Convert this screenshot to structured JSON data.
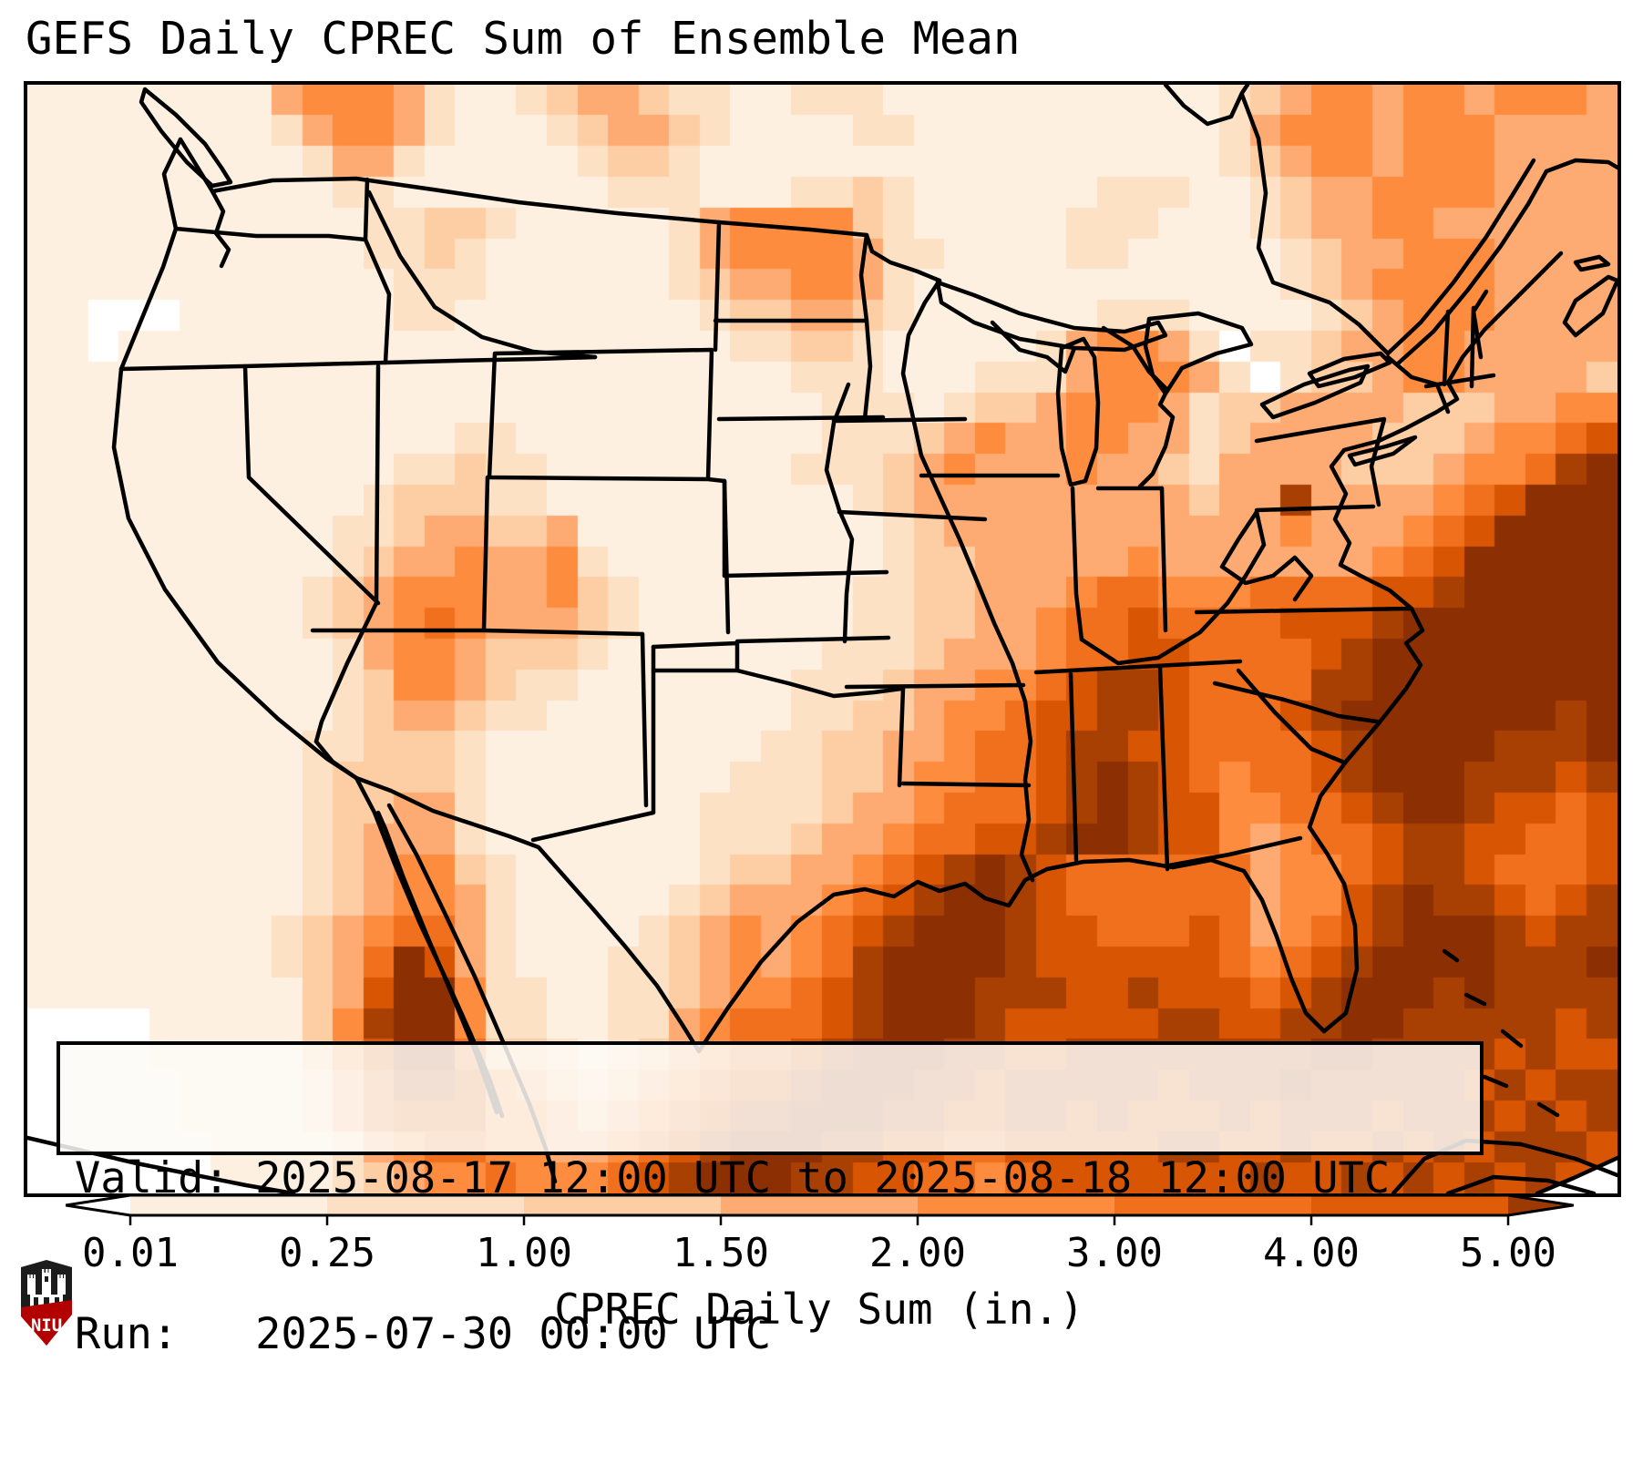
{
  "title": "GEFS Daily CPREC Sum of Ensemble Mean",
  "info_box": {
    "line1": "Valid: 2025-08-17 12:00 UTC to 2025-08-18 12:00 UTC",
    "line2": "Run:   2025-07-30 00:00 UTC"
  },
  "colorbar": {
    "label": "CPREC Daily Sum (in.)",
    "ticks": [
      "0.01",
      "0.25",
      "1.00",
      "1.50",
      "2.00",
      "3.00",
      "4.00",
      "5.00"
    ],
    "segment_colors": [
      "#fdefe0",
      "#fde0c3",
      "#fdcda4",
      "#fdab72",
      "#fd8c3e",
      "#f2701b",
      "#e05c09"
    ],
    "under_arrow_color": "#ffffff",
    "over_arrow_color": "#9d3a04"
  },
  "logo": {
    "text": "NIU",
    "shield_dark": "#1c1c1c",
    "shield_red": "#b30000"
  },
  "chart_data": {
    "type": "heatmap",
    "title": "GEFS Daily CPREC Sum of Ensemble Mean",
    "variable": "CPREC Daily Sum",
    "units": "in.",
    "valid": "2025-08-17 12:00 UTC to 2025-08-18 12:00 UTC",
    "run": "2025-07-30 00:00 UTC",
    "colormap": "Oranges (discrete, BoundaryNorm, extend both)",
    "boundaries": [
      0.01,
      0.25,
      1.0,
      1.5,
      2.0,
      3.0,
      4.0,
      5.0
    ],
    "legend_position": "bottom horizontal colorbar with arrow extends",
    "grid_note": "rows_encoded: 36 rows x 52 cols covering map area; char -> inches via level_values; '.' = below 0.01 / no data (white)",
    "level_values": {
      ".": 0.0,
      "1": 0.1,
      "2": 0.6,
      "3": 1.2,
      "4": 1.7,
      "5": 2.5,
      "6": 3.5,
      "7": 4.5,
      "8": 5.5,
      "9": 6.5
    },
    "palette": {
      ".": "#ffffff",
      "1": "#fdf0e1",
      "2": "#fde1c4",
      "3": "#fdcda4",
      "4": "#fdab72",
      "5": "#fd8c3e",
      "6": "#f1701d",
      "7": "#d85504",
      "8": "#a84004",
      "9": "#8c3004"
    },
    "regions_summary": "Light (<0.25 in) over West Coast, Great Basin and central Plains; 1.5-2.5 in blob over North Dakota; 2-4 in band SW Colorado / Arizona with >4 in near AZ-Mexico border; heavy 4->5+ in over Sinaloa Mexico, Louisiana coast / offshore Gulf, Mississippi-Alabama, Tennessee-Carolinas; very heavy >5 in over western Atlantic off the Southeast coast; 1-3 in Midwest, Great Lakes, Northeast and eastern Canada",
    "grid": {
      "cols": 52,
      "rows": 36,
      "rows_encoded": [
        "1111111145554211234432211222111111111112345545545554",
        "1111111124554211123443211112211111111112455545554444",
        "1111111112442111112332111111111111111112345545554444",
        "1111111111221111111222111223211111122211234455554444",
        "1111111111122332111112455553211111222111234455444444",
        "1111111111122321111112455554221111221111123445554444",
        "1111111111112221111112344554211111111111123455554444",
        "11...111111122111111112334432111111222111123455544444",
        "11.111111111111111111112233211111245542 2234455444444",
        "1111111111111111111111111222111222455542 2334554444334",
        "1111111111111111111111111122212334555423344443334455",
        "1111111111111122111111111122234544554423444433345567",
        "1111111111112232211111111222345444544324444333455689",
        "1111111111123332211111111112344444444434484444567999",
        "1111111111223443341111111111234444444444454445679999",
        "1111111111234454452111111111233444445444444456799999",
        "1111111112345554453211111112233444566555666677899999",
        "1111111112345654443211111112233445667666677789999999",
        "1111111111245543332111111122234445667766667899999999",
        "1111111111235543221111111222344556788766668899999999",
        "1111111111234432211111111223345567788766678999999989",
        "1111111112233321111111112233445667887766667899998889",
        "1111111112333321111111122233455667898765667899988878",
        "1111111112334421111111222234456667898775566789987767",
        "1111111112344421111111222344566778998775456678877667",
        "1111111112345532111111233445678987666666455678876667",
        "1111111112345542111112344456789987666666455789887678",
        "1111111123456642111123454567899987766676456789998788",
        "1111111123469742111223454568999987777776567899998889",
        "1111111113479952211223455678999888778777678999898888",
        "....111113589952211224566678999877777887788998888878",
        "....111113579963321234566789998877888888889988887877",
        ".....11112468875432345677899988788888788898888878788",
        ".....11112467775543456788999887788787778788878887878",
        "......1111245665544567899988776677777887787787878887",
        "......1111234556555678999887766567777777877878787877"
      ]
    }
  }
}
